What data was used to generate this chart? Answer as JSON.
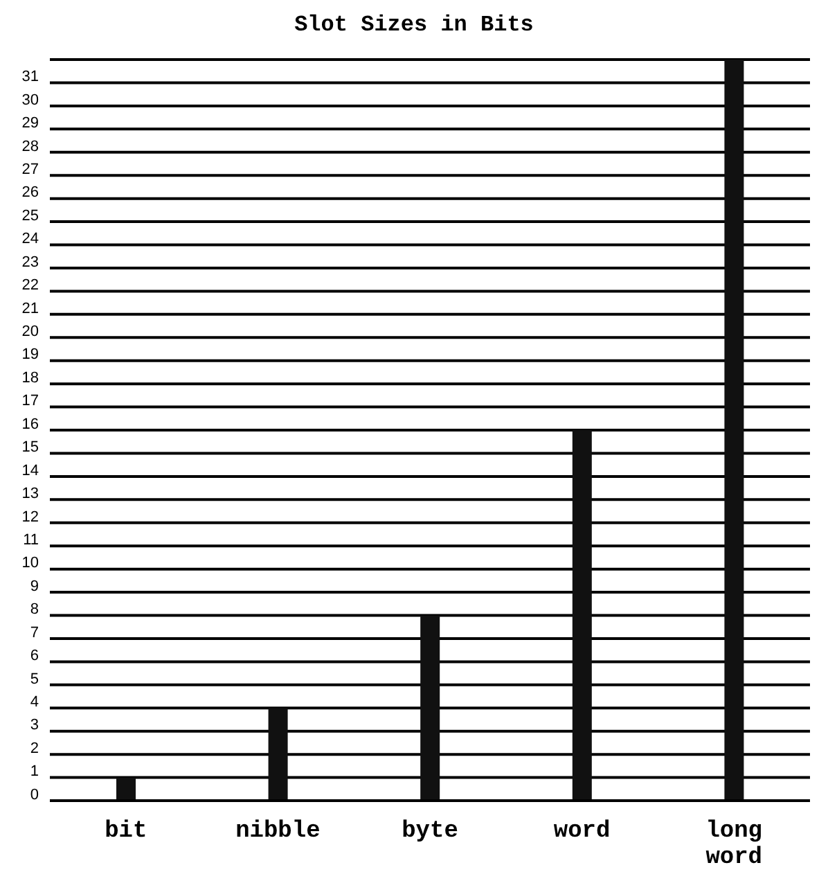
{
  "chart_data": {
    "type": "bar",
    "title": "Slot Sizes in Bits",
    "categories": [
      "bit",
      "nibble",
      "byte",
      "word",
      "long word"
    ],
    "values": [
      1,
      4,
      8,
      16,
      32
    ],
    "color": "#111111",
    "ylim": [
      0,
      32
    ],
    "yticks": [
      0,
      1,
      2,
      3,
      4,
      5,
      6,
      7,
      8,
      9,
      10,
      11,
      12,
      13,
      14,
      15,
      16,
      17,
      18,
      19,
      20,
      21,
      22,
      23,
      24,
      25,
      26,
      27,
      28,
      29,
      30,
      31,
      {
        "value": 32,
        "label": null
      }
    ],
    "grid": "y"
  }
}
